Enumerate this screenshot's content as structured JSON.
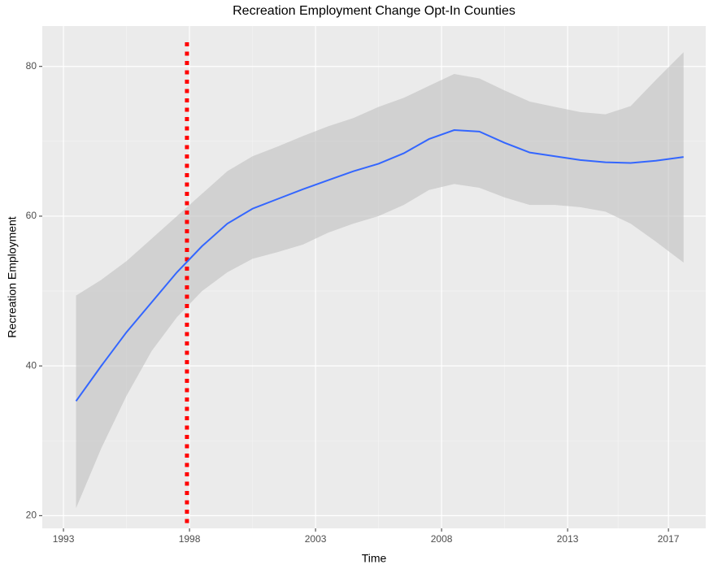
{
  "chart_data": {
    "type": "line",
    "title": "Recreation Employment Change Opt-In Counties",
    "x_label": "Time",
    "y_label": "Recreation Employment",
    "x": [
      1993.5,
      1994.5,
      1995.5,
      1996.5,
      1997.5,
      1998.5,
      1999.5,
      2000.5,
      2001.5,
      2002.5,
      2003.5,
      2004.5,
      2005.5,
      2006.5,
      2007.5,
      2008.5,
      2009.5,
      2010.5,
      2011.5,
      2012.5,
      2013.5,
      2014.5,
      2015.5,
      2016.5,
      2017.6
    ],
    "values": [
      35.3,
      40,
      44.5,
      48.5,
      52.5,
      56,
      59,
      61,
      62.3,
      63.6,
      64.8,
      66,
      67,
      68.4,
      70.3,
      71.5,
      71.3,
      69.8,
      68.5,
      68,
      67.5,
      67.2,
      67.1,
      67.4,
      67.9
    ],
    "lower": [
      21,
      29,
      36,
      42,
      46.5,
      50,
      52.5,
      54.3,
      55.2,
      56.2,
      57.8,
      59,
      60,
      61.5,
      63.5,
      64.3,
      63.8,
      62.5,
      61.5,
      61.5,
      61.2,
      60.6,
      59,
      56.6,
      53.8
    ],
    "upper": [
      49.4,
      51.5,
      54,
      57,
      60,
      63,
      66,
      68,
      69.3,
      70.7,
      72,
      73.1,
      74.6,
      75.8,
      77.4,
      79,
      78.4,
      76.8,
      75.3,
      74.6,
      73.9,
      73.6,
      74.7,
      78.2,
      81.9
    ],
    "color": "#3366ff",
    "band_color": "#bfbfbf",
    "vline": {
      "x": 1997.9,
      "color": "#ff0000"
    },
    "xlim": [
      1992.16,
      2018.48
    ],
    "xticks": [
      1993,
      1998,
      2003,
      2008,
      2013,
      2017
    ],
    "ylim": [
      18.3,
      85.4
    ],
    "yticks": [
      20,
      40,
      60,
      80
    ],
    "grid": true
  }
}
